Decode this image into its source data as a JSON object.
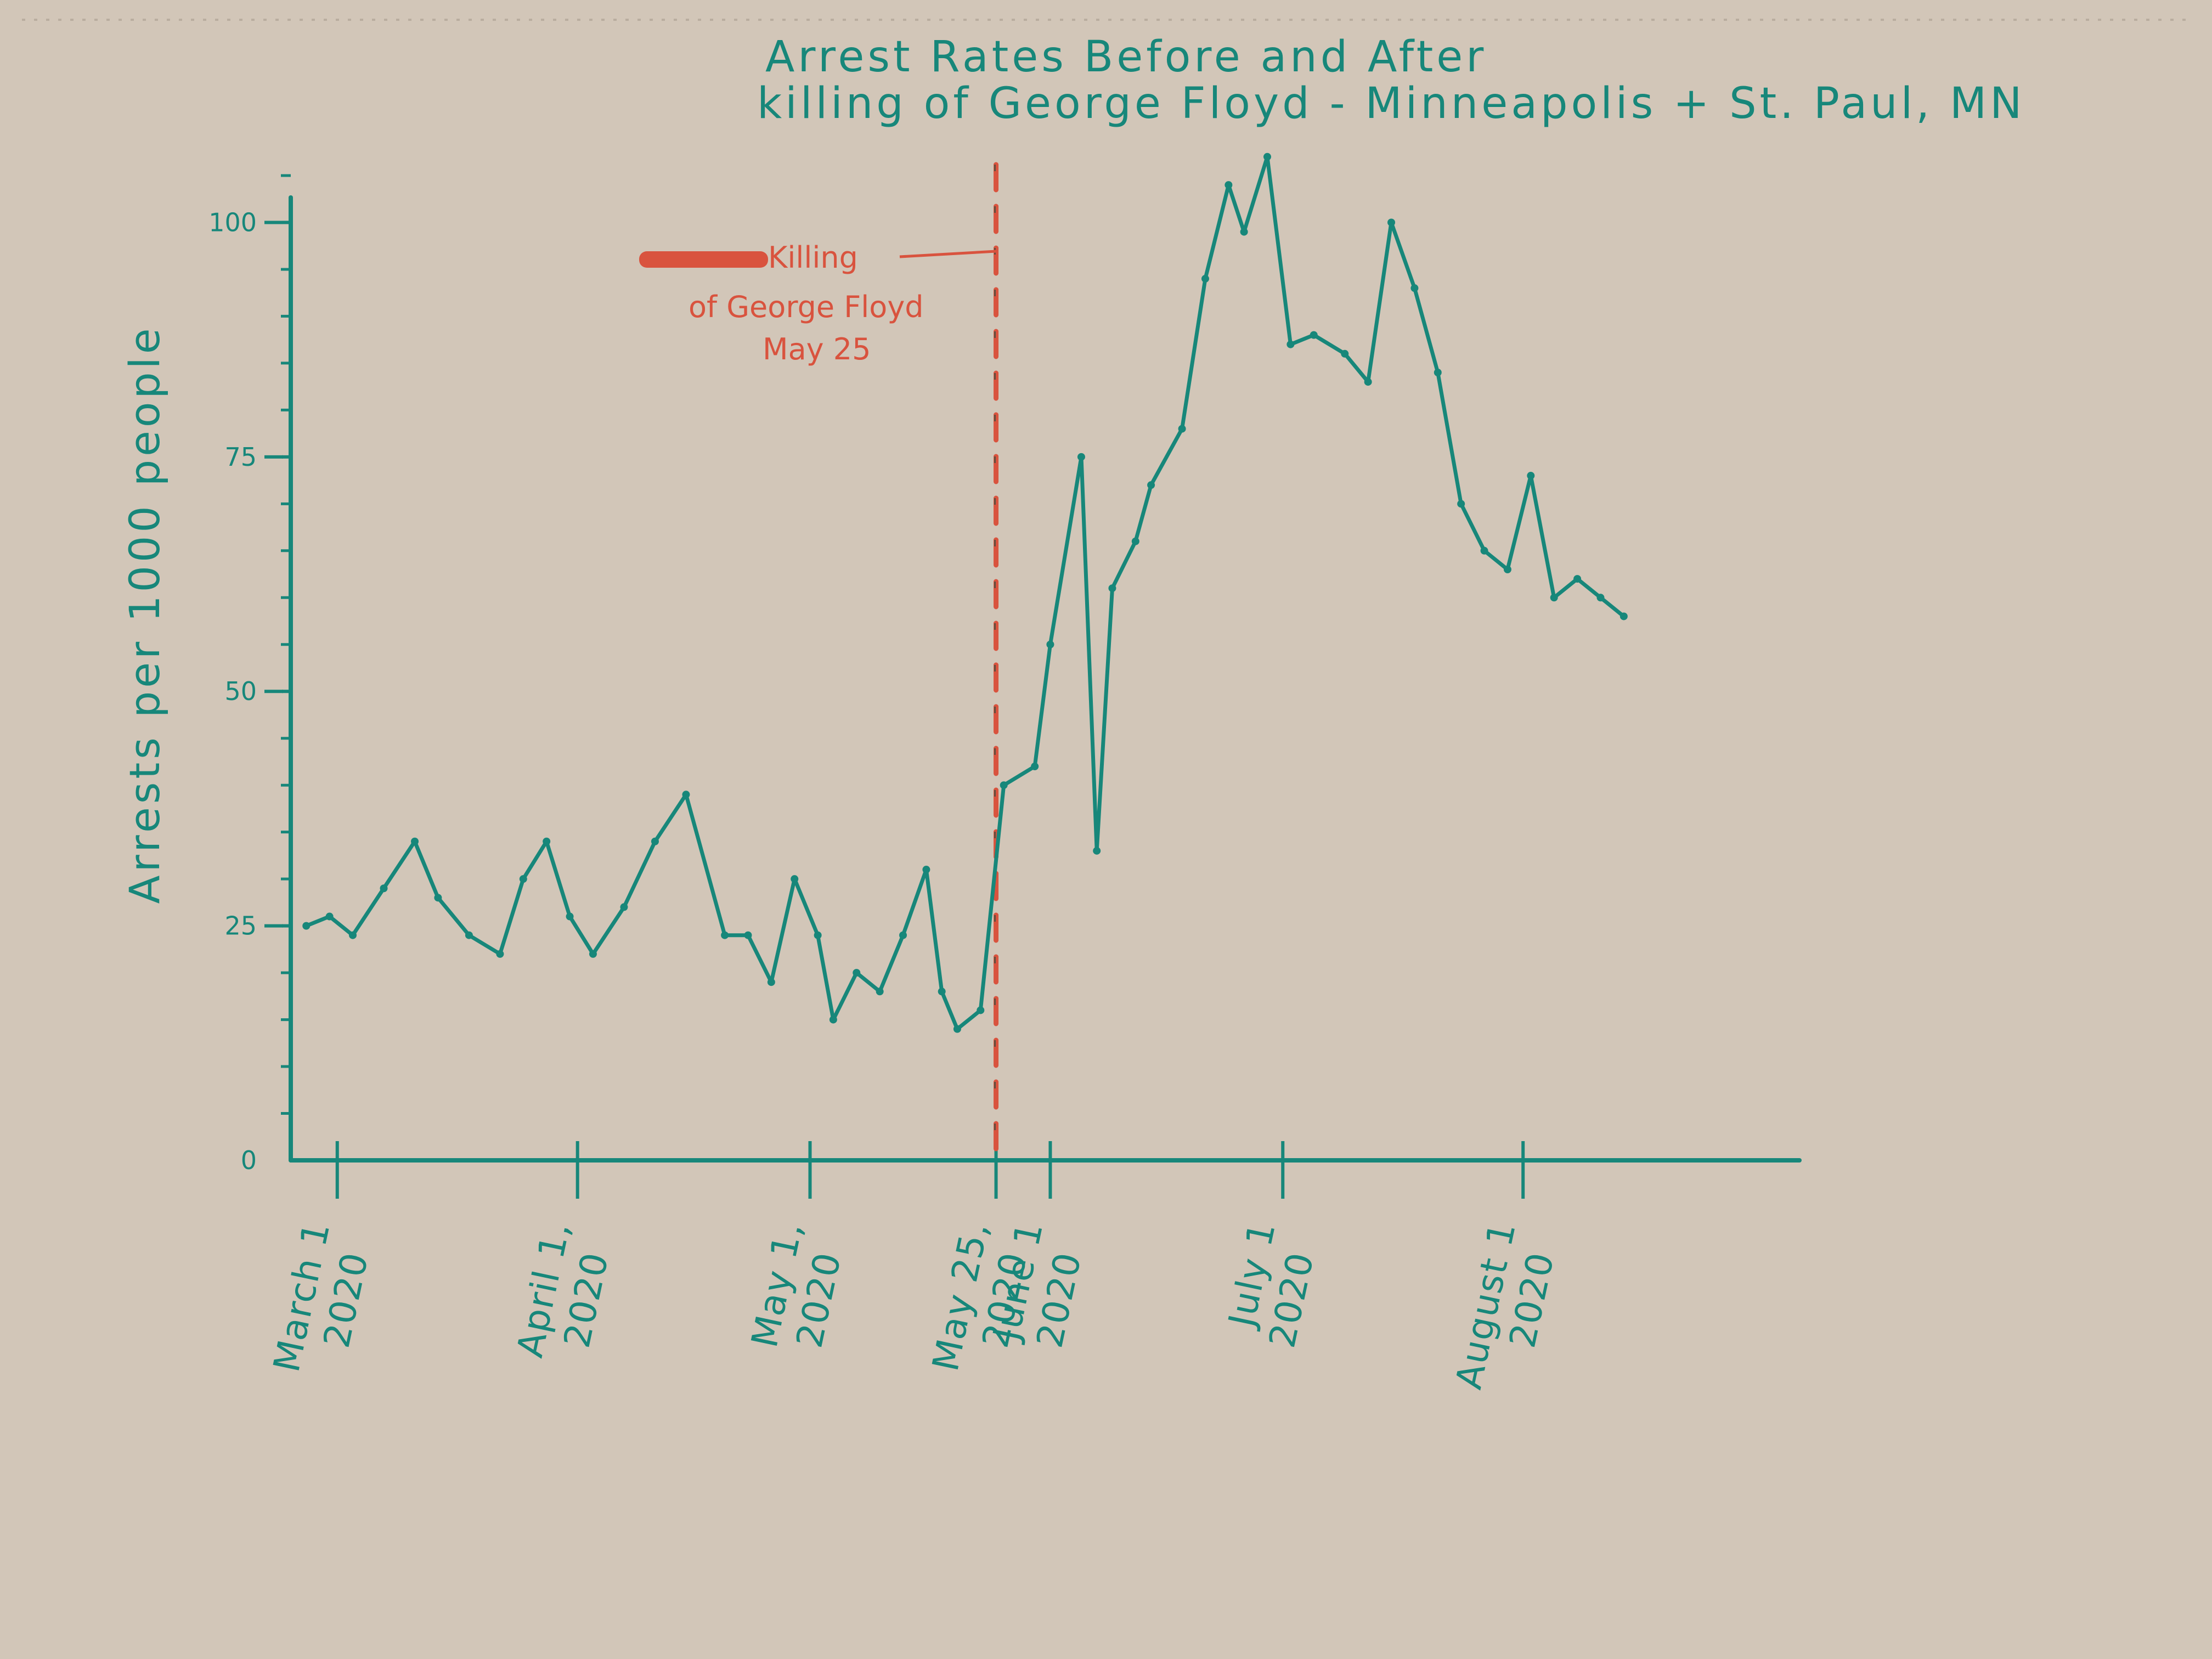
{
  "colors": {
    "paper": "#d2c6b8",
    "ink": "#17877a",
    "event": "#d9533e"
  },
  "chart_data": {
    "type": "line",
    "title": [
      "Arrest Rates Before and After",
      "killing of George Floyd - Minneapolis + St. Paul, MN"
    ],
    "ylabel": "Arrests per 1000 people",
    "xlabel": "",
    "ylim": [
      0,
      105
    ],
    "xlim": [
      "2020-02-24",
      "2020-08-31"
    ],
    "y_ticks": [
      {
        "value": 0,
        "label": "0"
      },
      {
        "value": 25,
        "label": "25"
      },
      {
        "value": 50,
        "label": "50"
      },
      {
        "value": 75,
        "label": "75"
      },
      {
        "value": 100,
        "label": "100"
      }
    ],
    "x_ticks": [
      {
        "date": "2020-03-01",
        "label": [
          "March 1",
          "2020"
        ]
      },
      {
        "date": "2020-04-01",
        "label": [
          "April 1,",
          "2020"
        ]
      },
      {
        "date": "2020-05-01",
        "label": [
          "May 1,",
          "2020"
        ]
      },
      {
        "date": "2020-05-25",
        "label": [
          "May 25,",
          "2020"
        ]
      },
      {
        "date": "2020-06-01",
        "label": [
          "June 1",
          "2020"
        ]
      },
      {
        "date": "2020-07-01",
        "label": [
          "July 1",
          "2020"
        ]
      },
      {
        "date": "2020-08-01",
        "label": [
          "August 1",
          "2020"
        ]
      }
    ],
    "grid": false,
    "legend": "none",
    "annotation": {
      "date": "2020-05-25",
      "text": [
        "Killing",
        "of George Floyd",
        "May 25"
      ]
    },
    "series": [
      {
        "x": [
          "2020-02-26",
          "2020-02-29",
          "2020-03-03",
          "2020-03-07",
          "2020-03-11",
          "2020-03-14",
          "2020-03-18",
          "2020-03-22",
          "2020-03-25",
          "2020-03-28",
          "2020-03-31",
          "2020-04-03",
          "2020-04-07",
          "2020-04-11",
          "2020-04-15",
          "2020-04-20",
          "2020-04-23",
          "2020-04-26",
          "2020-04-29",
          "2020-05-02",
          "2020-05-04",
          "2020-05-07",
          "2020-05-10",
          "2020-05-13",
          "2020-05-16",
          "2020-05-18",
          "2020-05-20",
          "2020-05-23",
          "2020-05-26",
          "2020-05-30",
          "2020-06-01",
          "2020-06-05",
          "2020-06-07",
          "2020-06-09",
          "2020-06-12",
          "2020-06-14",
          "2020-06-18",
          "2020-06-21",
          "2020-06-24",
          "2020-06-26",
          "2020-06-29",
          "2020-07-02",
          "2020-07-05",
          "2020-07-09",
          "2020-07-12",
          "2020-07-15",
          "2020-07-18",
          "2020-07-21",
          "2020-07-24",
          "2020-07-27",
          "2020-07-30",
          "2020-08-02",
          "2020-08-05",
          "2020-08-08",
          "2020-08-11",
          "2020-08-14"
        ],
        "values": [
          25,
          26,
          24,
          29,
          34,
          28,
          24,
          22,
          30,
          34,
          26,
          22,
          27,
          34,
          39,
          24,
          24,
          19,
          30,
          24,
          15,
          20,
          18,
          24,
          31,
          18,
          14,
          16,
          40,
          42,
          55,
          75,
          33,
          61,
          66,
          72,
          78,
          94,
          104,
          99,
          107,
          87,
          88,
          86,
          83,
          100,
          93,
          84,
          70,
          65,
          63,
          73,
          60,
          62,
          60,
          58
        ]
      }
    ]
  }
}
